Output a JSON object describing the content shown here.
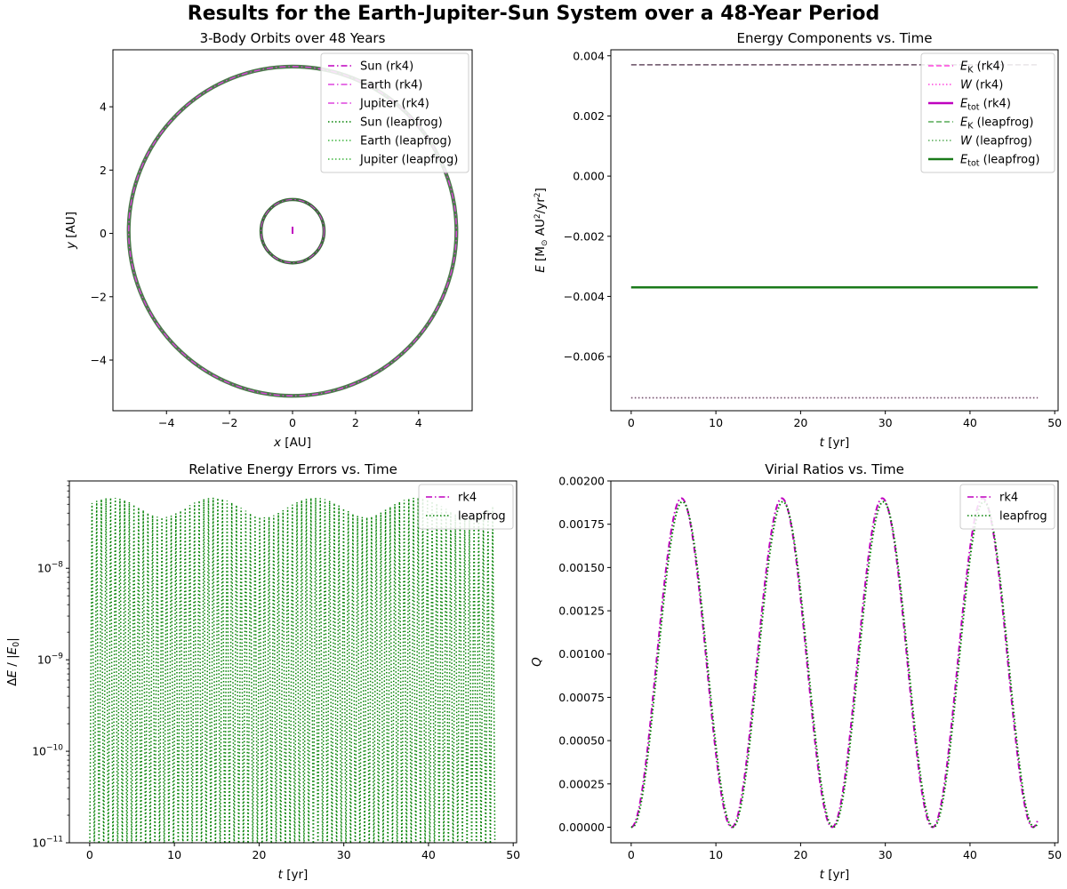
{
  "suptitle": "Results for the Earth-Jupiter-Sun System over a 48-Year Period",
  "chart_data": [
    {
      "type": "line",
      "title": "3-Body Orbits over 48 Years",
      "xlabel": "x [AU]",
      "ylabel": "y [AU]",
      "xlim": [
        -5.7,
        5.7
      ],
      "ylim": [
        -5.6,
        5.8
      ],
      "xticks": [
        -4,
        -2,
        0,
        2,
        4
      ],
      "yticks": [
        -4,
        -2,
        0,
        2,
        4
      ],
      "legend_loc": "top-right",
      "orbits": {
        "sun": {
          "center": [
            0.0,
            0.1
          ],
          "radius": 0.05
        },
        "earth": {
          "center": [
            0.0,
            0.07
          ],
          "radius": 1.0,
          "band_width": 0.1
        },
        "jupiter": {
          "center": [
            0.0,
            0.07
          ],
          "radius": 5.2,
          "band_width": 0.12
        }
      },
      "series": [
        {
          "name": "Sun (rk4)",
          "color": "#bf00bf",
          "style": "dashdot"
        },
        {
          "name": "Earth (rk4)",
          "color": "#dd44dd",
          "style": "dashdot"
        },
        {
          "name": "Jupiter (rk4)",
          "color": "#dd44dd",
          "style": "dashdot"
        },
        {
          "name": "Sun (leapfrog)",
          "color": "#008000",
          "style": "dotted"
        },
        {
          "name": "Earth (leapfrog)",
          "color": "#3cb43c",
          "style": "dotted"
        },
        {
          "name": "Jupiter (leapfrog)",
          "color": "#3cb43c",
          "style": "dotted"
        }
      ]
    },
    {
      "type": "line",
      "title": "Energy Components vs. Time",
      "xlabel": "t [yr]",
      "ylabel": "E [M⊙ AU²/yr²]",
      "xlim": [
        -2.4,
        50.4
      ],
      "ylim": [
        -0.0078,
        0.0042
      ],
      "xticks": [
        0,
        10,
        20,
        30,
        40,
        50
      ],
      "yticks": [
        "0.004",
        "0.002",
        "0.000",
        "−0.002",
        "−0.004",
        "−0.006"
      ],
      "ytick_values": [
        0.004,
        0.002,
        0.0,
        -0.002,
        -0.004,
        -0.006
      ],
      "legend_loc": "top-right",
      "series": [
        {
          "name": "E_K (rk4)",
          "color": "#ff44dd",
          "style": "dashed",
          "width": 1.5,
          "x": [
            0,
            48
          ],
          "y": [
            0.0037,
            0.0037
          ]
        },
        {
          "name": "W (rk4)",
          "color": "#ff44dd",
          "style": "dotted",
          "width": 1.5,
          "x": [
            0,
            48
          ],
          "y": [
            -0.00737,
            -0.00737
          ]
        },
        {
          "name": "E_tot (rk4)",
          "color": "#bf00bf",
          "style": "solid",
          "width": 2.5,
          "x": [
            0,
            48
          ],
          "y": [
            -0.0037,
            -0.0037
          ]
        },
        {
          "name": "E_K (leapfrog)",
          "color": "#55aa55",
          "style": "dashed",
          "width": 1.5,
          "x": [
            0,
            48
          ],
          "y": [
            0.0037,
            0.0037
          ]
        },
        {
          "name": "W (leapfrog)",
          "color": "#55aa55",
          "style": "dotted",
          "width": 1.5,
          "x": [
            0,
            48
          ],
          "y": [
            -0.00737,
            -0.00737
          ]
        },
        {
          "name": "E_tot (leapfrog)",
          "color": "#1a7a1a",
          "style": "solid",
          "width": 2.5,
          "x": [
            0,
            48
          ],
          "y": [
            -0.0037,
            -0.0037
          ]
        }
      ],
      "overlay_color": "#666666",
      "legend_entries": [
        {
          "sym": "E",
          "sub": "K",
          "rest": " (rk4)"
        },
        {
          "sym": "W",
          "sub": "",
          "rest": " (rk4)"
        },
        {
          "sym": "E",
          "sub": "tot",
          "rest": " (rk4)"
        },
        {
          "sym": "E",
          "sub": "K",
          "rest": " (leapfrog)"
        },
        {
          "sym": "W",
          "sub": "",
          "rest": " (leapfrog)"
        },
        {
          "sym": "E",
          "sub": "tot",
          "rest": " (leapfrog)"
        }
      ]
    },
    {
      "type": "line",
      "title": "Relative Energy Errors vs. Time",
      "xlabel": "t [yr]",
      "ylabel": "ΔE / |E₀|",
      "yscale": "log",
      "xlim": [
        -2.4,
        50.4
      ],
      "ylim": [
        1e-11,
        9e-08
      ],
      "xticks": [
        0,
        10,
        20,
        30,
        40,
        50
      ],
      "ytick_exponents": [
        -11,
        -10,
        -9,
        -8
      ],
      "legend_loc": "top-right",
      "oscillation": {
        "period_yr": 0.55,
        "floor": 1e-11,
        "peak_min": 3.5e-08,
        "peak_max": 6e-08,
        "beat_period_yr": 12
      },
      "series": [
        {
          "name": "rk4",
          "color": "#bf00bf",
          "style": "dashdot"
        },
        {
          "name": "leapfrog",
          "color": "#008000",
          "style": "dotted"
        }
      ]
    },
    {
      "type": "line",
      "title": "Virial Ratios vs. Time",
      "xlabel": "t [yr]",
      "ylabel": "Q",
      "xlim": [
        -2.4,
        50.4
      ],
      "ylim": [
        -9e-05,
        0.002
      ],
      "xticks": [
        0,
        10,
        20,
        30,
        40,
        50
      ],
      "yticks": [
        "0.00000",
        "0.00025",
        "0.00050",
        "0.00075",
        "0.00100",
        "0.00125",
        "0.00150",
        "0.00175",
        "0.00200"
      ],
      "ytick_values": [
        0,
        0.00025,
        0.0005,
        0.00075,
        0.001,
        0.00125,
        0.0015,
        0.00175,
        0.002
      ],
      "legend_loc": "top-right",
      "wave": {
        "period_yr": 11.86,
        "max": 0.0019,
        "min": 0.0
      },
      "series": [
        {
          "name": "rk4",
          "color": "#bf00bf",
          "style": "dashdot",
          "amp": 0.0019,
          "shift": 0.0
        },
        {
          "name": "leapfrog",
          "color": "#008000",
          "style": "dotted",
          "amp": 0.00188,
          "shift": 0.12
        }
      ]
    }
  ]
}
